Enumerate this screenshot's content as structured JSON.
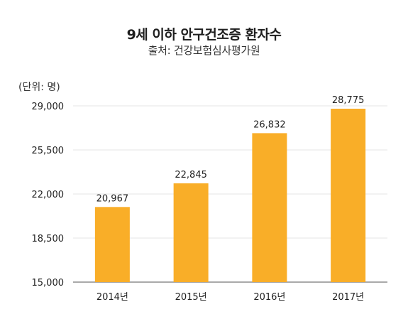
{
  "chart_data": {
    "type": "bar",
    "title": "9세 이하 안구건조증 환자수",
    "subtitle": "출처: 건강보험심사평가원",
    "unit_label": "(단위: 명)",
    "categories": [
      "2014년",
      "2015년",
      "2016년",
      "2017년"
    ],
    "values": [
      20967,
      22845,
      26832,
      28775
    ],
    "value_labels": [
      "20,967",
      "22,845",
      "26,832",
      "28,775"
    ],
    "yticks": [
      15000,
      18500,
      22000,
      25500,
      29000
    ],
    "ytick_labels": [
      "15,000",
      "18,500",
      "22,000",
      "25,500",
      "29,000"
    ],
    "ylim": [
      15000,
      29000
    ],
    "grid": true,
    "bar_color": "#F9AE28",
    "grid_color": "#e6e6e6",
    "axis_color": "#555555"
  }
}
